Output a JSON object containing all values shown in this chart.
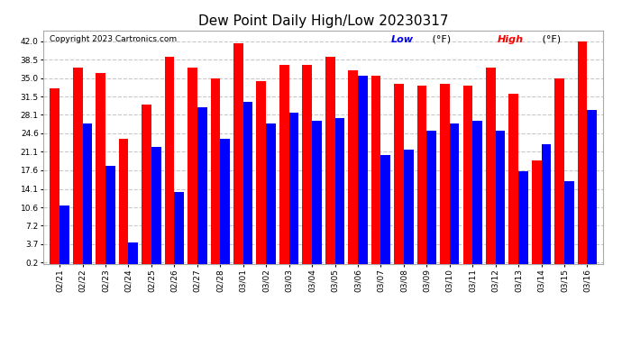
{
  "title": "Dew Point Daily High/Low 20230317",
  "copyright": "Copyright 2023 Cartronics.com",
  "legend_low": "Low",
  "legend_high": "High",
  "legend_unit": "(°F)",
  "dates": [
    "02/21",
    "02/22",
    "02/23",
    "02/24",
    "02/25",
    "02/26",
    "02/27",
    "02/28",
    "03/01",
    "03/02",
    "03/03",
    "03/04",
    "03/05",
    "03/06",
    "03/07",
    "03/08",
    "03/09",
    "03/10",
    "03/11",
    "03/12",
    "03/13",
    "03/14",
    "03/15",
    "03/16"
  ],
  "high_values": [
    33.0,
    37.0,
    36.0,
    23.5,
    30.0,
    39.0,
    37.0,
    35.0,
    41.5,
    34.5,
    37.5,
    37.5,
    39.0,
    36.5,
    35.5,
    34.0,
    33.5,
    34.0,
    33.5,
    37.0,
    32.0,
    19.5,
    35.0,
    42.0
  ],
  "low_values": [
    11.0,
    26.5,
    18.5,
    4.0,
    22.0,
    13.5,
    29.5,
    23.5,
    30.5,
    26.5,
    28.5,
    27.0,
    27.5,
    35.5,
    20.5,
    21.5,
    25.0,
    26.5,
    27.0,
    25.0,
    17.5,
    22.5,
    15.5,
    29.0
  ],
  "bar_color_high": "#ff0000",
  "bar_color_low": "#0000ff",
  "bg_color": "#ffffff",
  "plot_bg_color": "#ffffff",
  "grid_color": "#c8c8c8",
  "title_fontsize": 11,
  "tick_fontsize": 6.5,
  "copyright_fontsize": 6.5,
  "legend_fontsize": 8,
  "yticks": [
    0.2,
    3.7,
    7.2,
    10.6,
    14.1,
    17.6,
    21.1,
    24.6,
    28.1,
    31.5,
    35.0,
    38.5,
    42.0
  ],
  "ylim": [
    0.0,
    44.0
  ],
  "bar_width": 0.42
}
